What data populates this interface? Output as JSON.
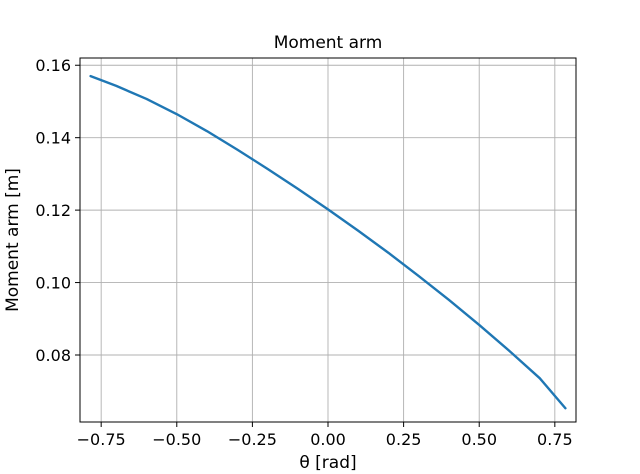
{
  "chart_data": {
    "type": "line",
    "title": "Moment arm",
    "xlabel": "θ [rad]",
    "ylabel": "Moment arm [m]",
    "xlim": [
      -0.82,
      0.82
    ],
    "ylim": [
      0.0615,
      0.162
    ],
    "grid": true,
    "xticks": [
      -0.75,
      -0.5,
      -0.25,
      0.0,
      0.25,
      0.5,
      0.75
    ],
    "xtick_labels": [
      "−0.75",
      "−0.50",
      "−0.25",
      "0.00",
      "0.25",
      "0.50",
      "0.75"
    ],
    "yticks": [
      0.08,
      0.1,
      0.12,
      0.14,
      0.16
    ],
    "ytick_labels": [
      "0.08",
      "0.10",
      "0.12",
      "0.14",
      "0.16"
    ],
    "series": [
      {
        "color": "#1f77b4",
        "x": [
          -0.785,
          -0.75,
          -0.7,
          -0.6,
          -0.5,
          -0.4,
          -0.3,
          -0.2,
          -0.1,
          0.0,
          0.1,
          0.2,
          0.3,
          0.4,
          0.5,
          0.6,
          0.7,
          0.785
        ],
        "y": [
          0.157,
          0.1559,
          0.1543,
          0.1507,
          0.1465,
          0.1418,
          0.1367,
          0.1314,
          0.1259,
          0.1202,
          0.1143,
          0.1082,
          0.1018,
          0.0952,
          0.0883,
          0.0811,
          0.0736,
          0.0653
        ]
      }
    ]
  }
}
